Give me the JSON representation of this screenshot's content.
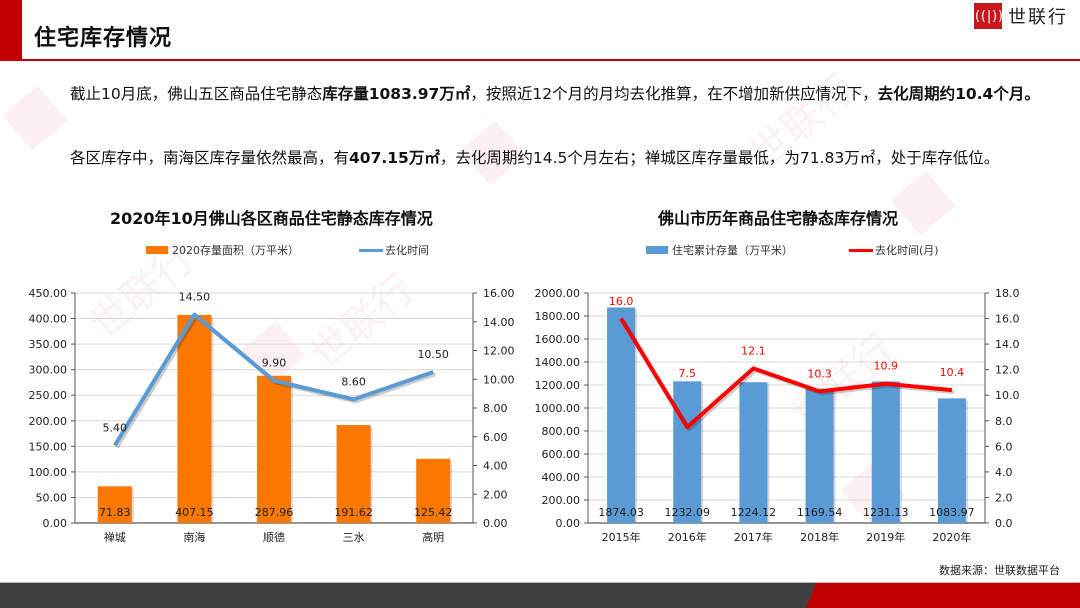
{
  "header": {
    "title": "住宅库存情况",
    "logo_mark": "(((|)))",
    "logo_text": "世联行"
  },
  "paragraphs": {
    "p1": {
      "a": "截止10月底，佛山五区商品住宅静态",
      "b": "库存量1083.97万㎡",
      "c": "，按照近12个月的月均去化推算，在不增加新供应情况下，",
      "d": "去化周期约10.4个月。"
    },
    "p2": {
      "a": "各区库存中，南海区库存量依然最高，有",
      "b": "407.15万㎡",
      "c": "，去化周期约14.5个月左右；禅城区库存量最低，为71.83万㎡，处于库存低位。"
    }
  },
  "source_note": "数据来源：世联数据平台",
  "colors": {
    "brand_red": "#c00000",
    "orange_bar": "#fa7800",
    "blue_line": "#5b9bd5",
    "blue_bar": "#5b9bd5",
    "red_line": "#ff0000",
    "footer_dark": "#404040"
  },
  "chart_data": [
    {
      "type": "bar",
      "title": "2020年10月佛山各区商品住宅静态库存情况",
      "categories": [
        "禅城",
        "南海",
        "顺德",
        "三水",
        "高明"
      ],
      "series": [
        {
          "name": "2020存量面积（万平米）",
          "type": "bar",
          "axis": "left",
          "values": [
            71.83,
            407.15,
            287.96,
            191.62,
            125.42
          ],
          "labels": [
            "71.83",
            "407.15",
            "287.96",
            "191.62",
            "125.42"
          ]
        },
        {
          "name": "去化时间",
          "type": "line",
          "axis": "right",
          "values": [
            5.4,
            14.5,
            9.9,
            8.6,
            10.5
          ],
          "labels": [
            "5.40",
            "14.50",
            "9.90",
            "8.60",
            "10.50"
          ]
        }
      ],
      "ylim_left": [
        0,
        450
      ],
      "yticks_left": [
        "0.00",
        "50.00",
        "100.00",
        "150.00",
        "200.00",
        "250.00",
        "300.00",
        "350.00",
        "400.00",
        "450.00"
      ],
      "ylim_right": [
        0,
        16
      ],
      "yticks_right": [
        "0.00",
        "2.00",
        "4.00",
        "6.00",
        "8.00",
        "10.00",
        "12.00",
        "14.00",
        "16.00"
      ],
      "grid": true,
      "legend_position": "top"
    },
    {
      "type": "bar",
      "title": "佛山市历年商品住宅静态库存情况",
      "categories": [
        "2015年",
        "2016年",
        "2017年",
        "2018年",
        "2019年",
        "2020年"
      ],
      "series": [
        {
          "name": "住宅累计存量（万平米）",
          "type": "bar",
          "axis": "left",
          "values": [
            1874.03,
            1232.09,
            1224.12,
            1169.54,
            1231.13,
            1083.97
          ],
          "labels": [
            "1874.03",
            "1232.09",
            "1224.12",
            "1169.54",
            "1231.13",
            "1083.97"
          ]
        },
        {
          "name": "去化时间(月)",
          "type": "line",
          "axis": "right",
          "values": [
            16.0,
            7.5,
            12.1,
            10.3,
            10.9,
            10.4
          ],
          "labels": [
            "16.0",
            "7.5",
            "12.1",
            "10.3",
            "10.9",
            "10.4"
          ]
        }
      ],
      "ylim_left": [
        0,
        2000
      ],
      "yticks_left": [
        "0.00",
        "200.00",
        "400.00",
        "600.00",
        "800.00",
        "1000.00",
        "1200.00",
        "1400.00",
        "1600.00",
        "1800.00",
        "2000.00"
      ],
      "ylim_right": [
        0,
        18
      ],
      "yticks_right": [
        "0.0",
        "2.0",
        "4.0",
        "6.0",
        "8.0",
        "10.0",
        "12.0",
        "14.0",
        "16.0",
        "18.0"
      ],
      "grid": true,
      "legend_position": "top"
    }
  ]
}
